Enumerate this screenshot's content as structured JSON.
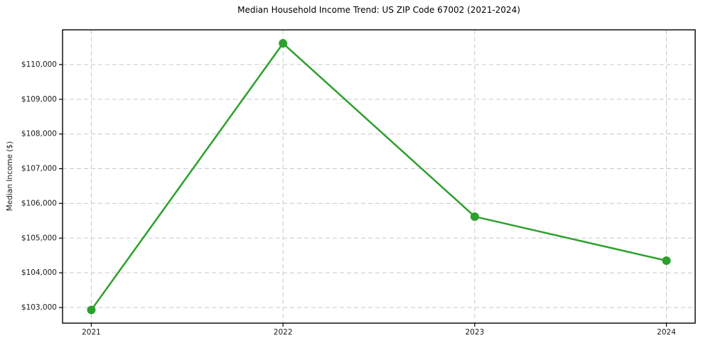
{
  "figure": {
    "background": "#ffffff"
  },
  "chart_data": {
    "type": "line",
    "title": "Median Household Income Trend: US ZIP Code 67002 (2021-2024)",
    "xlabel": "",
    "ylabel": "Median Income ($)",
    "x": [
      2021,
      2022,
      2023,
      2024
    ],
    "x_tick_labels": [
      "2021",
      "2022",
      "2023",
      "2024"
    ],
    "y_ticks": [
      103000,
      104000,
      105000,
      106000,
      107000,
      108000,
      109000,
      110000
    ],
    "y_tick_labels": [
      "$103,000",
      "$104,000",
      "$105,000",
      "$106,000",
      "$107,000",
      "$108,000",
      "$109,000",
      "$110,000"
    ],
    "series": [
      {
        "name": "Median Household Income",
        "values": [
          102930,
          110610,
          105620,
          104350
        ],
        "color": "#2ca02c",
        "marker": "circle",
        "line_width": 2.5,
        "marker_radius": 6
      }
    ],
    "xlim": [
      2020.85,
      2024.15
    ],
    "ylim": [
      102550,
      111000
    ],
    "grid": true,
    "grid_style": "dashed",
    "legend_position": "none",
    "colors": {
      "grid": "#c9c9c9",
      "spine": "#000000",
      "tick": "#000000",
      "text": "#1a1a1a"
    }
  }
}
